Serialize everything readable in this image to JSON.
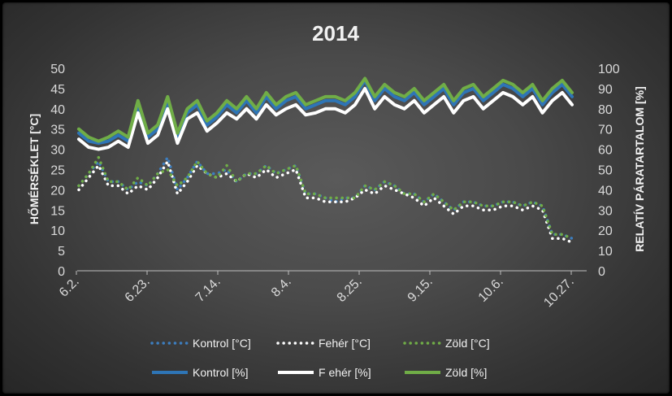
{
  "chart_data": {
    "type": "line",
    "title": "2014",
    "ylabel_left": "HŐMÉRSÉKLET [°C]",
    "ylabel_right": "RELATÍV PÁRATARTALOM [%]",
    "x_tick_labels": [
      "6.2.",
      "6.23.",
      "7.14.",
      "8.4.",
      "8.25.",
      "9.15.",
      "10.6.",
      "10.27."
    ],
    "ylim_left": [
      0,
      50
    ],
    "ylim_right": [
      0,
      100
    ],
    "yticks_left": [
      "0",
      "5",
      "10",
      "15",
      "20",
      "25",
      "30",
      "35",
      "40",
      "45",
      "50"
    ],
    "yticks_right": [
      "0",
      "10",
      "20",
      "30",
      "40",
      "50",
      "60",
      "70",
      "80",
      "90",
      "100"
    ],
    "grid": false,
    "legend_position": "bottom",
    "x": [
      0,
      3,
      6,
      9,
      12,
      15,
      18,
      21,
      24,
      27,
      30,
      33,
      36,
      39,
      42,
      45,
      48,
      51,
      54,
      57,
      60,
      63,
      66,
      69,
      72,
      75,
      78,
      81,
      84,
      87,
      90,
      93,
      96,
      99,
      102,
      105,
      108,
      111,
      114,
      117,
      120,
      123,
      126,
      129,
      132,
      135,
      138,
      141,
      144,
      147,
      150
    ],
    "series": [
      {
        "name": "Kontrol [°C]",
        "axis": "left",
        "style": "dotted",
        "color": "#3d7ebf",
        "values": [
          21,
          24,
          27,
          22,
          22,
          20,
          22,
          21,
          24,
          28,
          20,
          23,
          27,
          24,
          24,
          25,
          22,
          24,
          24,
          26,
          24,
          25,
          26,
          19,
          19,
          18,
          17,
          18,
          18,
          21,
          20,
          22,
          21,
          19,
          19,
          17,
          19,
          17,
          15,
          17,
          17,
          16,
          16,
          17,
          17,
          16,
          17,
          16,
          9,
          9,
          8
        ]
      },
      {
        "name": "Fehér [°C]",
        "axis": "left",
        "style": "dotted",
        "color": "#ffffff",
        "values": [
          20,
          23,
          26,
          21,
          21,
          19,
          21,
          20,
          23,
          27,
          19,
          22,
          26,
          24,
          23,
          24,
          22,
          24,
          23,
          25,
          23,
          24,
          25,
          18,
          18,
          17,
          17,
          17,
          18,
          20,
          19,
          21,
          20,
          19,
          18,
          16,
          18,
          16,
          14,
          16,
          16,
          15,
          15,
          16,
          16,
          15,
          16,
          15,
          8,
          8,
          7
        ]
      },
      {
        "name": "Zöld [°C]",
        "axis": "left",
        "style": "dotted",
        "color": "#70ad47",
        "values": [
          21,
          24,
          28,
          22,
          22,
          20,
          23,
          21,
          24,
          25,
          21,
          23,
          27,
          24,
          23,
          26,
          22,
          24,
          24,
          26,
          24,
          25,
          26,
          19,
          19,
          18,
          18,
          18,
          18,
          21,
          20,
          22,
          21,
          19,
          19,
          17,
          19,
          17,
          15,
          17,
          17,
          16,
          16,
          17,
          17,
          16,
          17,
          16,
          9,
          9,
          8
        ]
      },
      {
        "name": "Kontrol [%]",
        "axis": "right",
        "style": "solid",
        "color": "#2e75b6",
        "values": [
          68,
          64,
          63,
          64,
          67,
          64,
          82,
          66,
          70,
          84,
          66,
          78,
          82,
          72,
          76,
          82,
          78,
          84,
          78,
          86,
          80,
          84,
          86,
          80,
          82,
          84,
          84,
          82,
          86,
          94,
          84,
          90,
          86,
          84,
          88,
          82,
          86,
          90,
          82,
          88,
          90,
          84,
          88,
          92,
          90,
          86,
          90,
          82,
          88,
          92,
          86
        ]
      },
      {
        "name": "F ehér [%]",
        "axis": "right",
        "style": "solid",
        "color": "#ffffff",
        "values": [
          65,
          61,
          60,
          61,
          64,
          61,
          78,
          63,
          67,
          80,
          63,
          75,
          78,
          69,
          73,
          78,
          75,
          80,
          75,
          82,
          77,
          80,
          82,
          77,
          78,
          80,
          80,
          78,
          82,
          90,
          80,
          86,
          82,
          80,
          84,
          78,
          82,
          86,
          78,
          84,
          86,
          80,
          84,
          88,
          86,
          82,
          86,
          78,
          84,
          88,
          82
        ]
      },
      {
        "name": "Zöld [%]",
        "axis": "right",
        "style": "solid",
        "color": "#70ad47",
        "values": [
          70,
          66,
          64,
          66,
          69,
          66,
          84,
          68,
          72,
          86,
          68,
          80,
          84,
          74,
          78,
          84,
          80,
          86,
          80,
          88,
          82,
          86,
          88,
          82,
          84,
          86,
          86,
          84,
          88,
          95,
          86,
          92,
          88,
          86,
          90,
          84,
          88,
          92,
          84,
          90,
          92,
          86,
          90,
          94,
          92,
          88,
          92,
          84,
          90,
          94,
          88
        ]
      }
    ],
    "legend_labels": [
      "Kontrol [°C]",
      "Fehér [°C]",
      "Zöld [°C]",
      "Kontrol [%]",
      "F ehér [%]",
      "Zöld [%]"
    ]
  }
}
